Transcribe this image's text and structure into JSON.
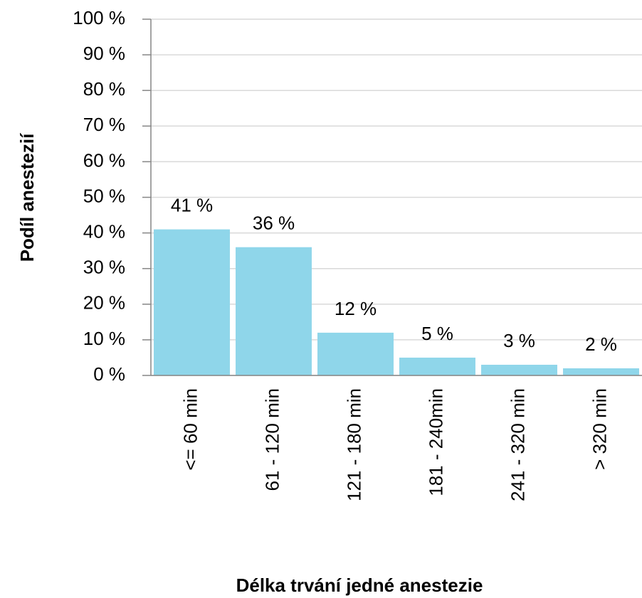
{
  "chart_data": {
    "type": "bar",
    "x_label": "Délka trvání jedné anestezie",
    "y_label": "Podíl anestezií",
    "categories": [
      "<= 60 min",
      "61 - 120 min",
      "121 - 180 min",
      "181 - 240min",
      "241 - 320 min",
      "> 320 min"
    ],
    "values": [
      41,
      36,
      12,
      5,
      3,
      2
    ],
    "value_labels": [
      "41 %",
      "36 %",
      "12 %",
      "5 %",
      "3 %",
      "2 %"
    ],
    "color": "#8fd6ea",
    "ylim": [
      0,
      100
    ],
    "yticks": [
      {
        "value": 0,
        "label": "0 %"
      },
      {
        "value": 10,
        "label": "10 %"
      },
      {
        "value": 20,
        "label": "20 %"
      },
      {
        "value": 30,
        "label": "30 %"
      },
      {
        "value": 40,
        "label": "40 %"
      },
      {
        "value": 50,
        "label": "50 %"
      },
      {
        "value": 60,
        "label": "60 %"
      },
      {
        "value": 70,
        "label": "70 %"
      },
      {
        "value": 80,
        "label": "80 %"
      },
      {
        "value": 90,
        "label": "90 %"
      },
      {
        "value": 100,
        "label": "100 %"
      }
    ],
    "grid": true
  }
}
